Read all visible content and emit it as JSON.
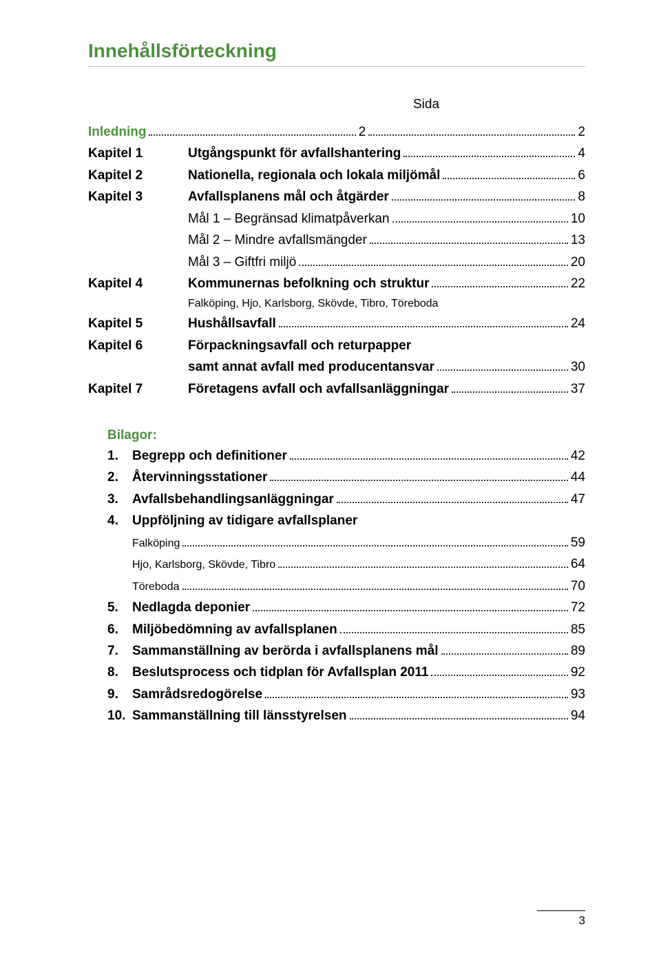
{
  "colors": {
    "heading": "#4f8f3f",
    "text": "#000000",
    "leader": "#333333",
    "title_underline": "#888888"
  },
  "typography": {
    "title_fontsize": 28,
    "body_fontsize": 19,
    "small_fontsize": 16,
    "font_family": "Arial"
  },
  "title": "Innehållsförteckning",
  "sida_label": "Sida",
  "toc": [
    {
      "chapter": "Inledning",
      "label": "",
      "page": "2",
      "green": true,
      "bold": true
    },
    {
      "chapter": "Kapitel 1",
      "label": "Utgångspunkt för avfallshantering",
      "page": "4",
      "bold": true
    },
    {
      "chapter": "Kapitel 2",
      "label": "Nationella, regionala och lokala miljömål",
      "page": "6",
      "bold": true
    },
    {
      "chapter": "Kapitel 3",
      "label": "Avfallsplanens mål och åtgärder",
      "page": "8",
      "bold": true
    },
    {
      "chapter": "",
      "label": "Mål 1 – Begränsad klimatpåverkan",
      "page": "10",
      "indent": true
    },
    {
      "chapter": "",
      "label": "Mål 2 – Mindre avfallsmängder",
      "page": "13",
      "indent": true
    },
    {
      "chapter": "",
      "label": "Mål 3 – Giftfri miljö",
      "page": "20",
      "indent": true
    },
    {
      "chapter": "Kapitel 4",
      "label": "Kommunernas befolkning och struktur",
      "page": "22",
      "bold": true
    },
    {
      "chapter": "",
      "label": "Falköping, Hjo, Karlsborg, Skövde, Tibro, Töreboda",
      "page": "",
      "indent": true,
      "small": true,
      "noleader": true
    },
    {
      "chapter": "Kapitel 5",
      "label": "Hushållsavfall",
      "page": "24",
      "bold": true
    },
    {
      "chapter": "Kapitel 6",
      "label": "Förpackningsavfall och returpapper",
      "page": "",
      "bold": true,
      "noleader": true
    },
    {
      "chapter": "",
      "label": "samt annat avfall med producentansvar",
      "page": "30",
      "indent": true,
      "bold": true
    },
    {
      "chapter": "Kapitel 7",
      "label": "Företagens avfall och avfallsanläggningar",
      "page": "37",
      "bold": true
    }
  ],
  "bilagor_heading": "Bilagor:",
  "bilagor": [
    {
      "num": "1.",
      "label": "Begrepp och definitioner",
      "page": "42",
      "bold": true
    },
    {
      "num": "2.",
      "label": "Återvinningsstationer",
      "page": "44",
      "bold": true
    },
    {
      "num": "3.",
      "label": "Avfallsbehandlingsanläggningar",
      "page": "47",
      "bold": true
    },
    {
      "num": "4.",
      "label": "Uppföljning av tidigare avfallsplaner",
      "page": "",
      "bold": true,
      "noleader": true
    },
    {
      "num": "",
      "label": "Falköping",
      "page": "59",
      "sub": true
    },
    {
      "num": "",
      "label": "Hjo, Karlsborg, Skövde, Tibro",
      "page": "64",
      "sub": true
    },
    {
      "num": "",
      "label": "Töreboda",
      "page": "70",
      "sub": true
    },
    {
      "num": "5.",
      "label": "Nedlagda deponier",
      "page": "72",
      "bold": true
    },
    {
      "num": "6.",
      "label": "Miljöbedömning av avfallsplanen",
      "page": "85",
      "bold": true
    },
    {
      "num": "7.",
      "label": "Sammanställning av berörda i avfallsplanens mål",
      "page": "89",
      "bold": true
    },
    {
      "num": "8.",
      "label": "Beslutsprocess och tidplan för Avfallsplan 2011",
      "page": "92",
      "bold": true
    },
    {
      "num": "9.",
      "label": "Samrådsredogörelse",
      "page": "93",
      "bold": true
    },
    {
      "num": "10.",
      "label": "Sammanställning till länsstyrelsen",
      "page": "94",
      "bold": true
    }
  ],
  "page_number": "3"
}
